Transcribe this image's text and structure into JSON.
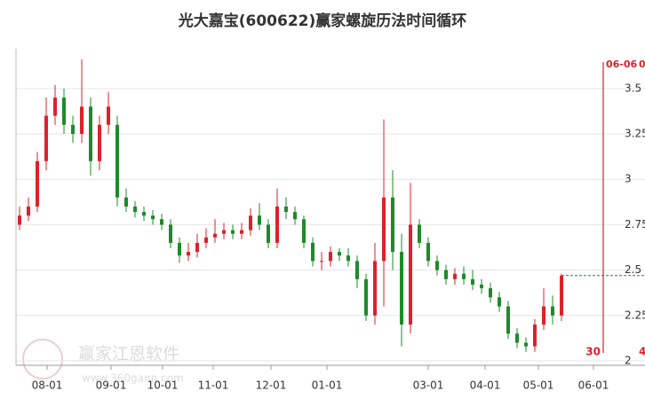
{
  "chart_data": {
    "type": "candlestick",
    "title": "光大嘉宝(600622)赢家螺旋历法时间循环",
    "watermark": "赢家江恩软件",
    "watermark_url": "www.360gann.com",
    "up_color": "#e0202a",
    "down_color": "#1f8a2a",
    "open": [
      2.75,
      2.8,
      2.85,
      3.1,
      3.35,
      3.45,
      3.3,
      3.25,
      3.4,
      3.1,
      3.3,
      3.3,
      2.9,
      2.85,
      2.82,
      2.8,
      2.78,
      2.75,
      2.65,
      2.58,
      2.6,
      2.65,
      2.68,
      2.7,
      2.72,
      2.7,
      2.72,
      2.8,
      2.75,
      2.65,
      2.85,
      2.82,
      2.78,
      2.65,
      2.55,
      2.55,
      2.6,
      2.58,
      2.55,
      2.45,
      2.25,
      2.55,
      2.9,
      2.6,
      2.2,
      2.75,
      2.65,
      2.55,
      2.5,
      2.45,
      2.48,
      2.45,
      2.42,
      2.4,
      2.35,
      2.3,
      2.15,
      2.1,
      2.08,
      2.2,
      2.3,
      2.25
    ],
    "high": [
      2.85,
      2.9,
      3.15,
      3.45,
      3.52,
      3.5,
      3.35,
      3.66,
      3.45,
      3.35,
      3.48,
      3.35,
      2.95,
      2.88,
      2.85,
      2.83,
      2.81,
      2.78,
      2.68,
      2.65,
      2.7,
      2.73,
      2.78,
      2.76,
      2.75,
      2.76,
      2.84,
      2.87,
      2.78,
      2.95,
      2.9,
      2.85,
      2.8,
      2.68,
      2.6,
      2.63,
      2.62,
      2.62,
      2.58,
      2.48,
      2.65,
      3.33,
      3.05,
      2.7,
      2.98,
      2.78,
      2.68,
      2.58,
      2.53,
      2.51,
      2.52,
      2.5,
      2.45,
      2.43,
      2.38,
      2.33,
      2.18,
      2.13,
      2.23,
      2.4,
      2.36,
      2.48
    ],
    "low": [
      2.72,
      2.77,
      2.82,
      3.05,
      3.3,
      3.25,
      3.2,
      3.2,
      3.02,
      3.05,
      3.25,
      2.85,
      2.82,
      2.79,
      2.77,
      2.75,
      2.72,
      2.62,
      2.54,
      2.55,
      2.57,
      2.62,
      2.65,
      2.67,
      2.67,
      2.67,
      2.69,
      2.72,
      2.62,
      2.62,
      2.78,
      2.75,
      2.62,
      2.52,
      2.5,
      2.52,
      2.55,
      2.52,
      2.4,
      2.22,
      2.2,
      2.3,
      2.5,
      2.08,
      2.15,
      2.62,
      2.52,
      2.47,
      2.42,
      2.42,
      2.42,
      2.39,
      2.37,
      2.32,
      2.27,
      2.12,
      2.07,
      2.05,
      2.05,
      2.17,
      2.2,
      2.22
    ],
    "close": [
      2.8,
      2.85,
      3.1,
      3.35,
      3.45,
      3.3,
      3.25,
      3.4,
      3.1,
      3.3,
      3.4,
      2.9,
      2.85,
      2.82,
      2.8,
      2.78,
      2.75,
      2.65,
      2.58,
      2.6,
      2.65,
      2.68,
      2.7,
      2.72,
      2.7,
      2.72,
      2.8,
      2.75,
      2.65,
      2.85,
      2.82,
      2.78,
      2.65,
      2.55,
      2.55,
      2.6,
      2.58,
      2.55,
      2.45,
      2.25,
      2.55,
      2.9,
      2.6,
      2.2,
      2.75,
      2.65,
      2.55,
      2.5,
      2.45,
      2.48,
      2.45,
      2.42,
      2.4,
      2.35,
      2.3,
      2.15,
      2.1,
      2.08,
      2.2,
      2.3,
      2.25,
      2.47
    ],
    "xlim": [
      -0.4,
      66
    ],
    "xticks": [
      {
        "value": 3.1,
        "label": "08-01"
      },
      {
        "value": 10.3,
        "label": "09-01"
      },
      {
        "value": 16.1,
        "label": "10-01"
      },
      {
        "value": 21.8,
        "label": "11-01"
      },
      {
        "value": 28.3,
        "label": "12-01"
      },
      {
        "value": 34.6,
        "label": "01-01"
      },
      {
        "value": 46,
        "label": "03-01"
      },
      {
        "value": 52.4,
        "label": "04-01"
      },
      {
        "value": 58.4,
        "label": "05-01"
      },
      {
        "value": 64.6,
        "label": "06-01"
      }
    ],
    "ylim": [
      2,
      3.67
    ],
    "yticks": [
      2,
      2.25,
      2.5,
      2.75,
      3,
      3.25,
      3.5
    ],
    "grid": true,
    "event_line": {
      "x": 65.7,
      "label": "06-06",
      "count": "30",
      "top_right_label": "0",
      "bottom_right_label": "4",
      "color": "#e0202a"
    }
  }
}
